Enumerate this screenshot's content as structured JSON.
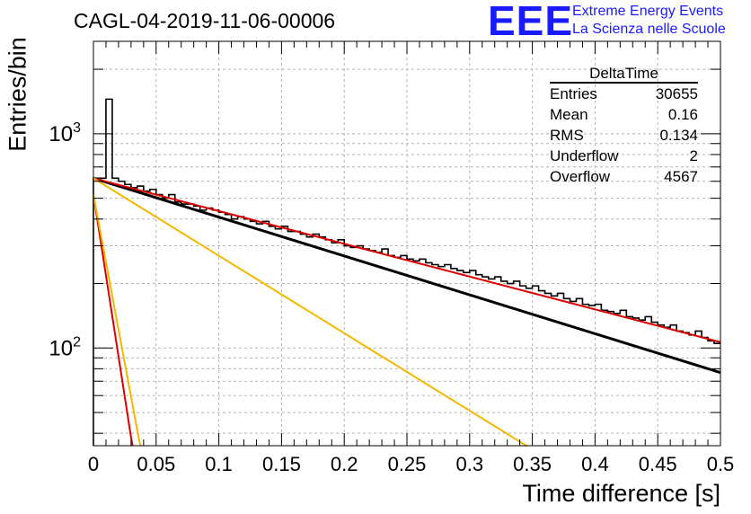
{
  "header": {
    "title": "CAGL-04-2019-11-06-00006",
    "logo_text": "EEE",
    "org_line1": "Extreme Energy Events",
    "org_line2": "La Scienza nelle Scuole"
  },
  "stats_box": {
    "title": "DeltaTime",
    "rows": [
      {
        "label": "Entries",
        "value": "30655"
      },
      {
        "label": "Mean",
        "value": "0.16"
      },
      {
        "label": "RMS",
        "value": "0.134"
      },
      {
        "label": "Underflow",
        "value": "2"
      },
      {
        "label": "Overflow",
        "value": "4567"
      }
    ]
  },
  "colors": {
    "histogram": "#000000",
    "black_fit": "#000000",
    "red": "#dd0000",
    "orange": "#f5b800",
    "grid": "#b4b4b4",
    "logo": "#1a1aff"
  },
  "chart_data": {
    "type": "line",
    "title": "CAGL-04-2019-11-06-00006",
    "xlabel": "Time difference [s]",
    "ylabel": "Entries/bin",
    "xscale": "linear",
    "yscale": "log",
    "xlim": [
      0,
      0.5
    ],
    "ylim": [
      35,
      2700
    ],
    "grid": true,
    "x_ticks": [
      0,
      0.05,
      0.1,
      0.15,
      0.2,
      0.25,
      0.3,
      0.35,
      0.4,
      0.45,
      0.5
    ],
    "x_tick_labels": [
      "0",
      "0.05",
      "0.1",
      "0.15",
      "0.2",
      "0.25",
      "0.3",
      "0.35",
      "0.4",
      "0.45",
      "0.5"
    ],
    "y_tick_labels": [
      {
        "value": 100,
        "base": "10",
        "exp": "2"
      },
      {
        "value": 1000,
        "base": "10",
        "exp": "3"
      }
    ],
    "histogram": {
      "name": "DeltaTime",
      "x0": 0,
      "bin_width": 0.005,
      "values": [
        620,
        620,
        1450,
        620,
        600,
        580,
        560,
        570,
        540,
        550,
        520,
        500,
        520,
        480,
        470,
        470,
        460,
        440,
        450,
        440,
        430,
        420,
        400,
        410,
        400,
        390,
        380,
        390,
        370,
        360,
        370,
        350,
        350,
        340,
        330,
        340,
        330,
        320,
        310,
        320,
        300,
        295,
        300,
        290,
        285,
        280,
        290,
        270,
        265,
        270,
        260,
        255,
        260,
        250,
        245,
        240,
        245,
        235,
        230,
        225,
        230,
        220,
        215,
        210,
        215,
        205,
        200,
        205,
        195,
        190,
        195,
        185,
        180,
        175,
        180,
        170,
        165,
        170,
        160,
        158,
        160,
        150,
        148,
        145,
        150,
        140,
        138,
        135,
        140,
        132,
        128,
        125,
        128,
        120,
        118,
        115,
        120,
        112,
        108,
        105
      ]
    },
    "series": [
      {
        "color": "#000000",
        "type": "exponential",
        "a": 620,
        "tau": 0.2394,
        "x_range": [
          0,
          0.5
        ]
      },
      {
        "color": "#dd0000",
        "type": "exponential",
        "a": 620,
        "tau": 0.2838,
        "x_range": [
          0,
          0.5
        ]
      },
      {
        "color": "#f5b800",
        "type": "exponential",
        "a": 620,
        "tau": 0.1201,
        "x_range": [
          0,
          0.5
        ]
      },
      {
        "color": "#dd0000",
        "type": "exponential",
        "a": 520,
        "tau": 0.0115,
        "x_range": [
          0,
          0.5
        ]
      },
      {
        "color": "#f5b800",
        "type": "exponential",
        "a": 520,
        "tau": 0.0138,
        "x_range": [
          0,
          0.5
        ]
      }
    ]
  }
}
